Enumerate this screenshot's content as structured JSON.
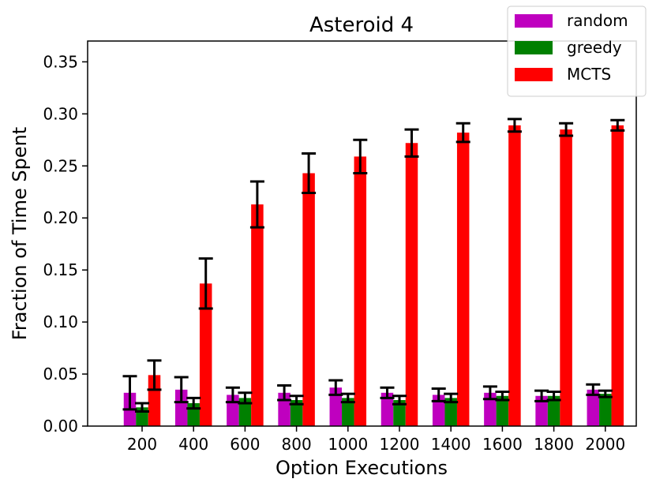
{
  "chart_data": {
    "type": "bar",
    "title": "Asteroid 4",
    "xlabel": "Option Executions",
    "ylabel": "Fraction of Time Spent",
    "categories": [
      "200",
      "400",
      "600",
      "800",
      "1000",
      "1200",
      "1400",
      "1600",
      "1800",
      "2000"
    ],
    "ylim": [
      0,
      0.37
    ],
    "yticks": [
      "0.00",
      "0.05",
      "0.10",
      "0.15",
      "0.20",
      "0.25",
      "0.30",
      "0.35"
    ],
    "legend_position": "top-right",
    "grid": false,
    "series": [
      {
        "name": "random",
        "color": "#bf00bf",
        "values": [
          0.032,
          0.035,
          0.03,
          0.032,
          0.037,
          0.032,
          0.03,
          0.032,
          0.029,
          0.035
        ],
        "errors": [
          0.016,
          0.012,
          0.007,
          0.007,
          0.007,
          0.005,
          0.006,
          0.006,
          0.005,
          0.005
        ]
      },
      {
        "name": "greedy",
        "color": "#008000",
        "values": [
          0.018,
          0.022,
          0.027,
          0.025,
          0.027,
          0.025,
          0.027,
          0.029,
          0.029,
          0.031
        ],
        "errors": [
          0.004,
          0.005,
          0.005,
          0.004,
          0.004,
          0.004,
          0.004,
          0.004,
          0.004,
          0.003
        ]
      },
      {
        "name": "MCTS",
        "color": "#ff0000",
        "values": [
          0.049,
          0.137,
          0.213,
          0.243,
          0.259,
          0.272,
          0.282,
          0.289,
          0.285,
          0.289
        ],
        "errors": [
          0.014,
          0.024,
          0.022,
          0.019,
          0.016,
          0.013,
          0.009,
          0.006,
          0.006,
          0.005
        ]
      }
    ]
  }
}
